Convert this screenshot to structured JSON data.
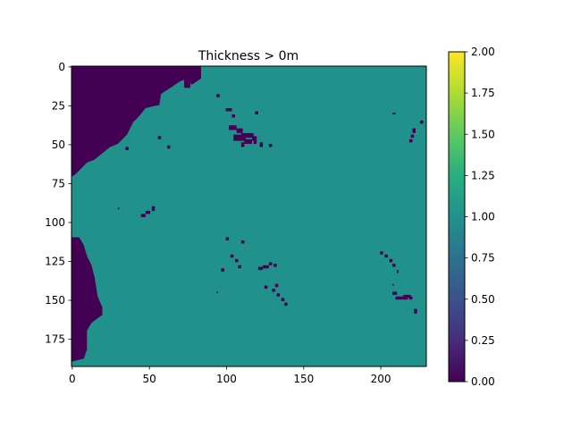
{
  "chart_data": {
    "type": "heatmap",
    "title": "Thickness > 0m",
    "xlabel": "",
    "ylabel": "",
    "grid": [
      193,
      230
    ],
    "xlim": [
      0,
      229
    ],
    "ylim": [
      192,
      0
    ],
    "x_ticks": [
      0,
      50,
      100,
      150,
      200
    ],
    "y_ticks": [
      0,
      25,
      50,
      75,
      100,
      125,
      150,
      175
    ],
    "colorbar": {
      "colormap": "viridis",
      "range": [
        0,
        2
      ],
      "ticks": [
        "0.00",
        "0.25",
        "0.50",
        "0.75",
        "1.00",
        "1.25",
        "1.50",
        "1.75",
        "2.00"
      ]
    },
    "dominant_value": 1.0,
    "zero_value_regions": [
      "land mass along top-left (columns 0-80, rows 0-70)",
      "land mass along left edge (columns 0-20, rows 110-190)",
      "scattered small zero-value spots across the grid"
    ],
    "colors": {
      "value_0": "#440154",
      "value_1": "#21918c",
      "value_2": "#fde725"
    }
  }
}
